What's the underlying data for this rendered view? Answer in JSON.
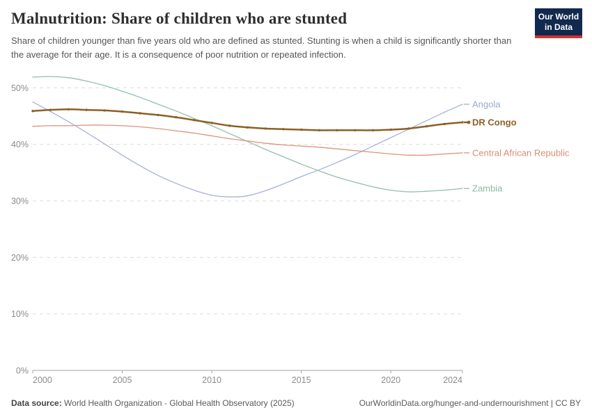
{
  "header": {
    "title": "Malnutrition: Share of children who are stunted",
    "subtitle": "Share of children younger than five years old who are defined as stunted. Stunting is when a child is significantly shorter than the average for their age. It is a consequence of poor nutrition or repeated infection.",
    "logo": {
      "line1": "Our World",
      "line2": "in Data",
      "bg_color": "#12294e",
      "accent_color": "#d1342c"
    }
  },
  "chart_data": {
    "type": "line",
    "x": [
      2000,
      2001,
      2002,
      2003,
      2004,
      2005,
      2006,
      2007,
      2008,
      2009,
      2010,
      2011,
      2012,
      2013,
      2014,
      2015,
      2016,
      2017,
      2018,
      2019,
      2020,
      2021,
      2022,
      2023,
      2024
    ],
    "series": [
      {
        "name": "Zambia",
        "color": "#92bfa8",
        "label_color": "#87b8a0",
        "width": 1.3,
        "markers": false,
        "emphasis": false,
        "values": [
          51.9,
          52.0,
          51.8,
          51.2,
          50.4,
          49.4,
          48.3,
          47.1,
          45.9,
          44.6,
          43.3,
          41.9,
          40.5,
          39.1,
          37.8,
          36.5,
          35.3,
          34.2,
          33.3,
          32.5,
          31.9,
          31.6,
          31.7,
          31.9,
          32.2
        ]
      },
      {
        "name": "Angola",
        "color": "#a6b1d7",
        "label_color": "#9aa9d2",
        "width": 1.3,
        "markers": false,
        "emphasis": false,
        "values": [
          47.5,
          45.8,
          44.0,
          42.1,
          40.1,
          38.1,
          36.2,
          34.5,
          33.1,
          31.9,
          31.0,
          30.7,
          30.9,
          31.8,
          33.0,
          34.3,
          35.5,
          36.8,
          38.2,
          39.7,
          41.2,
          42.7,
          44.2,
          45.7,
          47.1
        ]
      },
      {
        "name": "Central African Republic",
        "color": "#dd9378",
        "label_color": "#d88d74",
        "width": 1.3,
        "markers": false,
        "emphasis": false,
        "values": [
          43.2,
          43.3,
          43.3,
          43.4,
          43.4,
          43.3,
          43.1,
          42.8,
          42.4,
          42.0,
          41.5,
          41.0,
          40.6,
          40.2,
          39.9,
          39.7,
          39.5,
          39.2,
          38.9,
          38.6,
          38.3,
          38.1,
          38.1,
          38.3,
          38.5
        ]
      },
      {
        "name": "DR Congo",
        "color": "#8d5f25",
        "label_color": "#8c5f28",
        "width": 2.5,
        "markers": true,
        "emphasis": true,
        "values": [
          45.9,
          46.1,
          46.2,
          46.1,
          46.0,
          45.8,
          45.5,
          45.2,
          44.8,
          44.3,
          43.8,
          43.3,
          43.0,
          42.8,
          42.7,
          42.6,
          42.5,
          42.5,
          42.5,
          42.5,
          42.6,
          42.8,
          43.2,
          43.6,
          43.9
        ]
      }
    ],
    "title": "Malnutrition: Share of children who are stunted",
    "xlabel": "",
    "ylabel": "",
    "ylim": [
      0,
      55
    ],
    "xlim": [
      2000,
      2024
    ],
    "y_ticks": [
      {
        "value": 0,
        "label": "0%"
      },
      {
        "value": 10,
        "label": "10%"
      },
      {
        "value": 20,
        "label": "20%"
      },
      {
        "value": 30,
        "label": "30%"
      },
      {
        "value": 40,
        "label": "40%"
      },
      {
        "value": 50,
        "label": "50%"
      }
    ],
    "x_ticks": [
      {
        "value": 2000,
        "label": "2000"
      },
      {
        "value": 2005,
        "label": "2005"
      },
      {
        "value": 2010,
        "label": "2010"
      },
      {
        "value": 2015,
        "label": "2015"
      },
      {
        "value": 2020,
        "label": "2020"
      },
      {
        "value": 2024,
        "label": "2024"
      }
    ],
    "grid": "horizontal-dashed",
    "legend_position": "right-end-labels"
  },
  "footer": {
    "datasource_label": "Data source:",
    "datasource_text": "World Health Organization - Global Health Observatory (2025)",
    "license_text": "OurWorldinData.org/hunger-and-undernourishment | CC BY"
  }
}
